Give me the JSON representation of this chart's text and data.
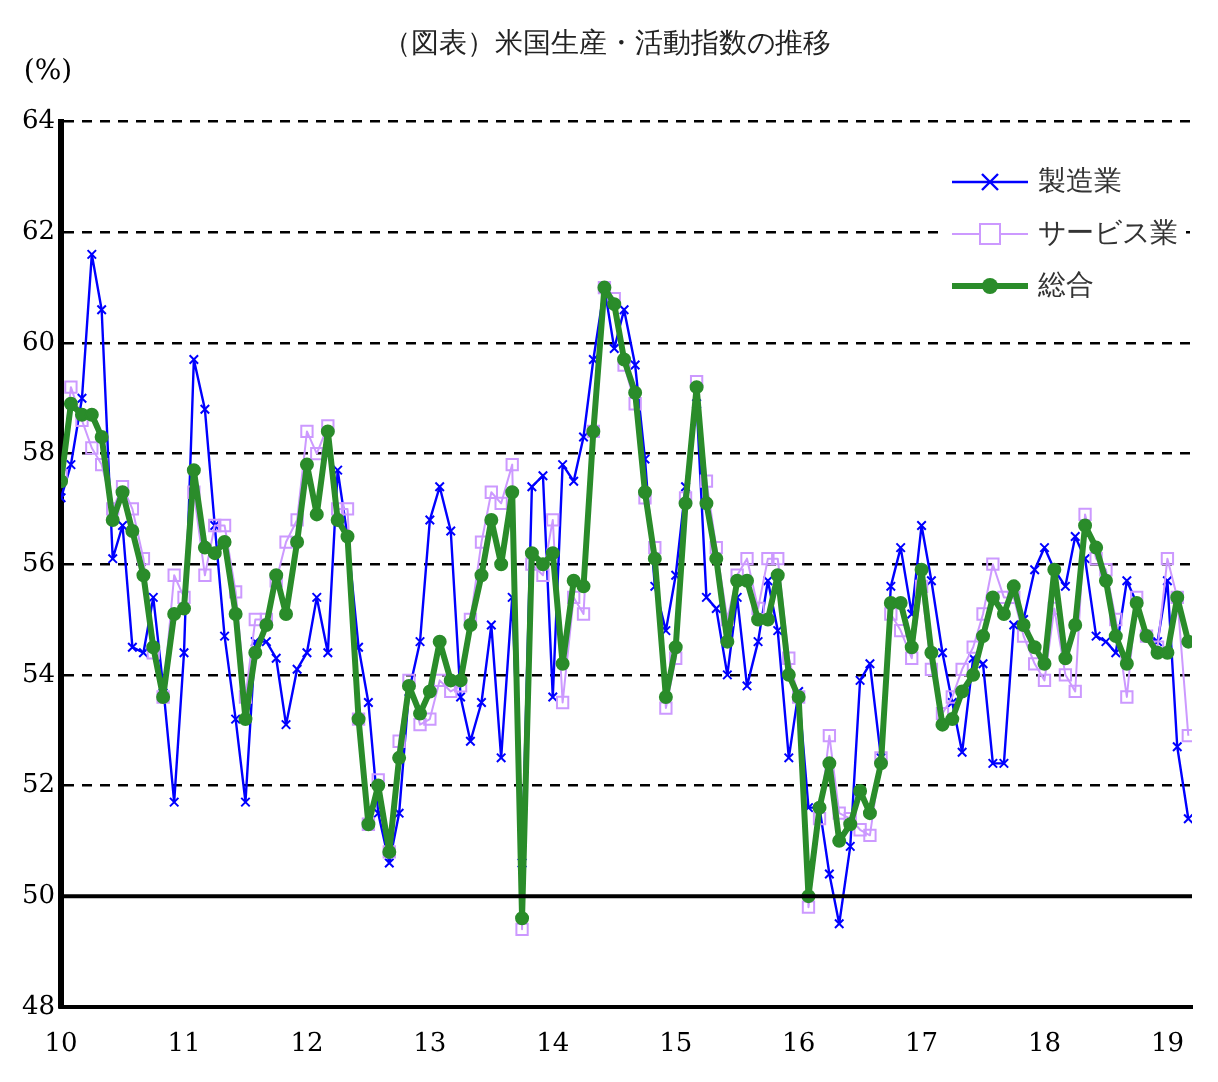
{
  "chart_data": {
    "type": "line",
    "title": "（図表）米国生産・活動指数の推移",
    "ylabel": "(%)",
    "x": [
      10,
      10.08,
      10.17,
      10.25,
      10.33,
      10.42,
      10.5,
      10.58,
      10.67,
      10.75,
      10.83,
      10.92,
      11,
      11.08,
      11.17,
      11.25,
      11.33,
      11.42,
      11.5,
      11.58,
      11.67,
      11.75,
      11.83,
      11.92,
      12,
      12.08,
      12.17,
      12.25,
      12.33,
      12.42,
      12.5,
      12.58,
      12.67,
      12.75,
      12.83,
      12.92,
      13,
      13.08,
      13.17,
      13.25,
      13.33,
      13.42,
      13.5,
      13.58,
      13.67,
      13.75,
      13.83,
      13.92,
      14,
      14.08,
      14.17,
      14.25,
      14.33,
      14.42,
      14.5,
      14.58,
      14.67,
      14.75,
      14.83,
      14.92,
      15,
      15.08,
      15.17,
      15.25,
      15.33,
      15.42,
      15.5,
      15.58,
      15.67,
      15.75,
      15.83,
      15.92,
      16,
      16.08,
      16.17,
      16.25,
      16.33,
      16.42,
      16.5,
      16.58,
      16.67,
      16.75,
      16.83,
      16.92,
      17,
      17.08,
      17.17,
      17.25,
      17.33,
      17.42,
      17.5,
      17.58,
      17.67,
      17.75,
      17.83,
      17.92,
      18,
      18.08,
      18.17,
      18.25,
      18.33,
      18.42,
      18.5,
      18.58,
      18.67,
      18.75,
      18.83,
      18.92,
      19,
      19.08,
      19.17
    ],
    "series": [
      {
        "name": "製造業",
        "color": "#0000ff",
        "marker": "cross",
        "values": [
          57.2,
          57.8,
          59.0,
          61.6,
          60.6,
          56.1,
          56.7,
          54.5,
          54.4,
          55.4,
          53.8,
          51.7,
          54.4,
          59.7,
          58.8,
          56.7,
          54.7,
          53.2,
          51.7,
          54.6,
          54.6,
          54.3,
          53.1,
          54.1,
          54.4,
          55.4,
          54.4,
          57.7,
          56.5,
          54.5,
          53.5,
          51.5,
          50.6,
          51.5,
          53.7,
          54.6,
          56.8,
          57.4,
          56.6,
          53.6,
          52.8,
          53.5,
          54.9,
          52.5,
          55.4,
          50.6,
          57.4,
          57.6,
          53.6,
          57.8,
          57.5,
          58.3,
          59.7,
          61.0,
          59.9,
          60.6,
          59.6,
          57.9,
          55.6,
          54.8,
          55.8,
          57.4,
          58.9,
          55.4,
          55.2,
          54.0,
          55.4,
          53.8,
          54.6,
          55.7,
          54.8,
          52.5,
          53.7,
          51.6,
          51.6,
          50.4,
          49.5,
          50.9,
          53.9,
          54.2,
          52.5,
          55.6,
          56.3,
          55.1,
          56.7,
          55.7,
          54.4,
          53.5,
          52.6,
          54.3,
          54.2,
          52.4,
          52.4,
          54.9,
          55.0,
          55.9,
          56.3,
          55.9,
          55.6,
          56.5,
          56.1,
          54.7,
          54.6,
          54.4,
          55.7,
          55.3,
          54.7,
          54.6,
          55.7,
          52.7,
          51.4
        ]
      },
      {
        "name": "サービス業",
        "color": "#cc99ff",
        "marker": "square",
        "values": [
          57.6,
          59.2,
          58.6,
          58.1,
          57.8,
          57.0,
          57.4,
          57.0,
          56.1,
          54.4,
          53.6,
          55.8,
          55.4,
          57.3,
          55.8,
          56.7,
          56.7,
          55.5,
          53.6,
          55.0,
          55.0,
          55.7,
          56.4,
          56.8,
          58.4,
          58.0,
          58.5,
          57.0,
          57.0,
          53.2,
          51.3,
          52.1,
          50.8,
          52.8,
          53.9,
          53.1,
          53.2,
          53.9,
          53.7,
          53.8,
          55.0,
          56.4,
          57.3,
          57.1,
          57.8,
          49.4,
          56.0,
          55.8,
          56.8,
          53.5,
          55.4,
          55.1,
          58.4,
          61.0,
          60.8,
          59.6,
          58.9,
          57.2,
          56.3,
          53.4,
          54.3,
          57.2,
          59.3,
          57.5,
          56.3,
          55.0,
          55.8,
          56.1,
          55.2,
          56.1,
          56.1,
          54.3,
          53.6,
          49.8,
          51.4,
          52.9,
          51.5,
          51.4,
          51.2,
          51.1,
          52.5,
          55.1,
          54.8,
          54.3,
          55.6,
          54.1,
          53.3,
          53.6,
          54.1,
          54.5,
          55.1,
          56.0,
          55.4,
          55.4,
          54.7,
          54.2,
          53.9,
          55.2,
          54.0,
          53.7,
          56.9,
          56.1,
          55.9,
          55.0,
          53.6,
          55.4,
          54.7,
          54.5,
          56.1,
          55.4,
          52.9
        ]
      },
      {
        "name": "総合",
        "color": "#2a8c2a",
        "marker": "circle",
        "values": [
          57.5,
          58.9,
          58.7,
          58.7,
          58.3,
          56.8,
          57.3,
          56.6,
          55.8,
          54.5,
          53.6,
          55.1,
          55.2,
          57.7,
          56.3,
          56.2,
          56.4,
          55.1,
          53.2,
          54.4,
          54.9,
          55.8,
          55.1,
          56.4,
          57.8,
          56.9,
          58.4,
          56.8,
          56.5,
          53.2,
          51.3,
          52.0,
          50.8,
          52.5,
          53.8,
          53.3,
          53.7,
          54.6,
          53.9,
          53.9,
          54.9,
          55.8,
          56.8,
          56.0,
          57.3,
          49.6,
          56.2,
          56.0,
          56.2,
          54.2,
          55.7,
          55.6,
          58.4,
          61.0,
          60.7,
          59.7,
          59.1,
          57.3,
          56.1,
          53.6,
          54.5,
          57.1,
          59.2,
          57.1,
          56.1,
          54.6,
          55.7,
          55.7,
          55.0,
          55.0,
          55.8,
          54.0,
          53.6,
          50.0,
          51.6,
          52.4,
          51.0,
          51.3,
          51.9,
          51.5,
          52.4,
          55.3,
          55.3,
          54.5,
          55.9,
          54.4,
          53.1,
          53.2,
          53.7,
          54.0,
          54.7,
          55.4,
          55.1,
          55.6,
          54.9,
          54.5,
          54.2,
          55.9,
          54.3,
          54.9,
          56.7,
          56.3,
          55.7,
          54.7,
          54.2,
          55.3,
          54.7,
          54.4,
          54.4,
          55.4,
          54.6
        ]
      }
    ],
    "xlim": [
      10,
      19.2
    ],
    "xticks": [
      10,
      11,
      12,
      13,
      14,
      15,
      16,
      17,
      18,
      19
    ],
    "ylim": [
      48,
      64
    ],
    "yticks": [
      48,
      50,
      52,
      54,
      56,
      58,
      60,
      62,
      64
    ],
    "grid": "y",
    "line_style": "solid",
    "legend": "top right",
    "ref_lines": [
      {
        "axis": "y",
        "value": 50,
        "color": "#000000",
        "line_style": "solid"
      }
    ]
  }
}
